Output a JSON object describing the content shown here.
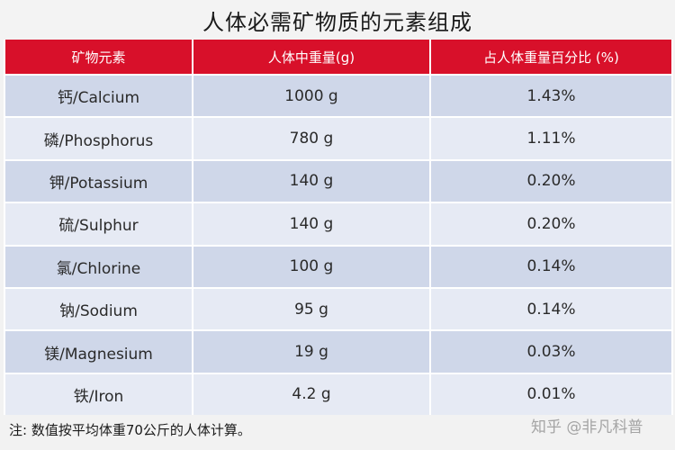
{
  "title": "人体必需矿物质的元素组成",
  "table": {
    "headers": [
      "矿物元素",
      "人体中重量(g)",
      "占人体重量百分比 (%)"
    ],
    "rows": [
      {
        "element": "钙/Calcium",
        "weight": "1000 g",
        "percent": "1.43%"
      },
      {
        "element": "磷/Phosphorus",
        "weight": "780 g",
        "percent": "1.11%"
      },
      {
        "element": "钾/Potassium",
        "weight": "140 g",
        "percent": "0.20%"
      },
      {
        "element": "硫/Sulphur",
        "weight": "140 g",
        "percent": "0.20%"
      },
      {
        "element": "氯/Chlorine",
        "weight": "100 g",
        "percent": "0.14%"
      },
      {
        "element": "钠/Sodium",
        "weight": "95 g",
        "percent": "0.14%"
      },
      {
        "element": "镁/Magnesium",
        "weight": "19 g",
        "percent": "0.03%"
      },
      {
        "element": "铁/Iron",
        "weight": "4.2 g",
        "percent": "0.01%"
      }
    ]
  },
  "note": "注:  数值按平均体重70公斤的人体计算。",
  "watermark": "知乎 @非凡科普"
}
